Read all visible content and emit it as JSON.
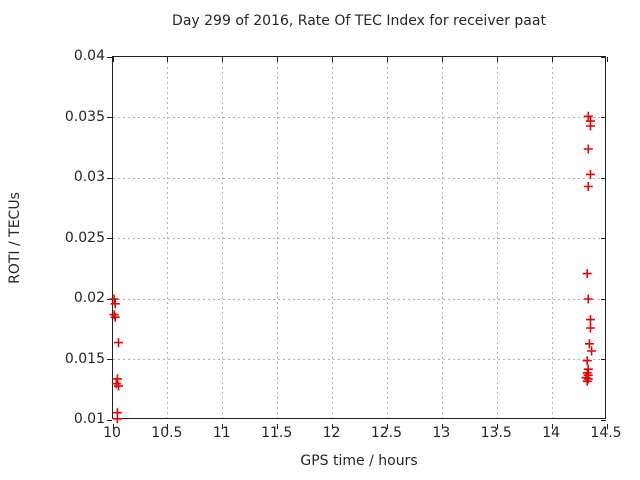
{
  "window": {
    "title": "Day 299 of 2016, Rate Of TEC Index for receiver paat"
  },
  "colors": {
    "marker": "#ee0000",
    "grid": "#b4b4b4",
    "axis": "#222222",
    "text": "#262626",
    "background": "#ffffff"
  },
  "chart_data": {
    "type": "scatter",
    "title": "Day 299 of 2016, Rate Of TEC Index for receiver paat",
    "xlabel": "GPS time / hours",
    "ylabel": "ROTI / TECUs",
    "xlim": [
      10,
      14.5
    ],
    "ylim": [
      0.01,
      0.04
    ],
    "xticks": [
      10,
      10.5,
      11,
      11.5,
      12,
      12.5,
      13,
      13.5,
      14,
      14.5
    ],
    "yticks": [
      0.01,
      0.015,
      0.02,
      0.025,
      0.03,
      0.035,
      0.04
    ],
    "grid": true,
    "legend_position": "none",
    "marker_shape": "plus",
    "marker_color": "#ee0000",
    "series": [
      {
        "name": "ROTI",
        "points": [
          [
            10.01,
            0.02
          ],
          [
            10.02,
            0.0196
          ],
          [
            10.01,
            0.0187
          ],
          [
            10.02,
            0.0185
          ],
          [
            10.05,
            0.0164
          ],
          [
            10.04,
            0.0134
          ],
          [
            10.03,
            0.013
          ],
          [
            10.05,
            0.0128
          ],
          [
            10.04,
            0.0106
          ],
          [
            10.04,
            0.0101
          ],
          [
            14.33,
            0.0351
          ],
          [
            14.35,
            0.0347
          ],
          [
            14.35,
            0.0343
          ],
          [
            14.33,
            0.0324
          ],
          [
            14.35,
            0.0303
          ],
          [
            14.33,
            0.0293
          ],
          [
            14.32,
            0.0221
          ],
          [
            14.33,
            0.02
          ],
          [
            14.35,
            0.0183
          ],
          [
            14.35,
            0.0176
          ],
          [
            14.34,
            0.0163
          ],
          [
            14.36,
            0.0157
          ],
          [
            14.32,
            0.0149
          ],
          [
            14.33,
            0.0142
          ],
          [
            14.32,
            0.0139
          ],
          [
            14.33,
            0.0137
          ],
          [
            14.31,
            0.0135
          ],
          [
            14.33,
            0.0134
          ],
          [
            14.32,
            0.0132
          ]
        ]
      }
    ]
  }
}
